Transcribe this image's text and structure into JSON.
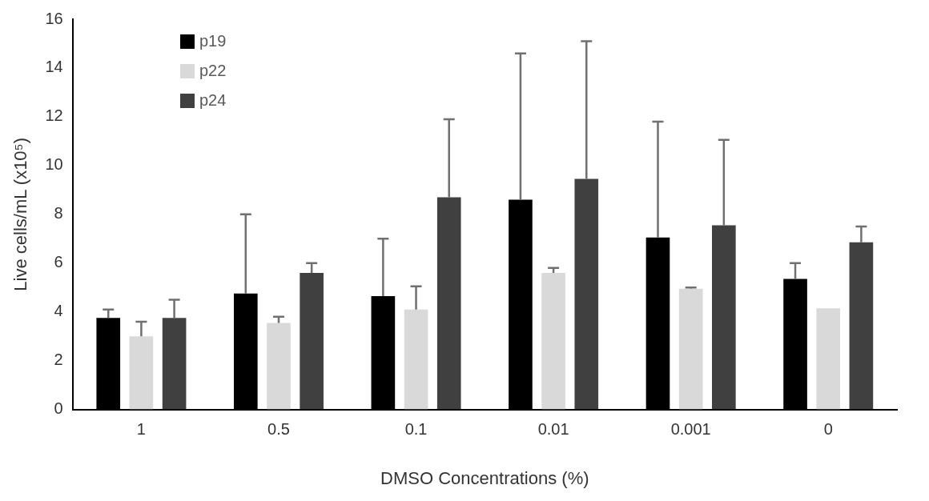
{
  "chart_data": {
    "type": "bar",
    "xlabel": "DMSO Concentrations (%)",
    "ylabel": "Live cells/mL (x10⁵)",
    "categories": [
      "1",
      "0.5",
      "0.1",
      "0.01",
      "0.001",
      "0"
    ],
    "series": [
      {
        "name": "p19",
        "color": "#000000",
        "values": [
          3.75,
          4.75,
          4.65,
          8.6,
          7.05,
          5.35
        ],
        "errors": [
          [
            3.75,
            4.1
          ],
          [
            4.75,
            8.0
          ],
          [
            4.65,
            7.0
          ],
          [
            8.6,
            14.6
          ],
          [
            7.05,
            11.8
          ],
          [
            5.35,
            6.0
          ]
        ]
      },
      {
        "name": "p22",
        "color": "#d9d9d9",
        "values": [
          3.0,
          3.55,
          4.1,
          5.6,
          4.95,
          4.15
        ],
        "errors": [
          [
            3.0,
            3.6
          ],
          [
            3.55,
            3.8
          ],
          [
            4.1,
            5.05
          ],
          [
            5.6,
            5.8
          ],
          [
            4.95,
            5.0
          ],
          null
        ]
      },
      {
        "name": "p24",
        "color": "#404040",
        "values": [
          3.75,
          5.6,
          8.7,
          9.45,
          7.55,
          6.85
        ],
        "errors": [
          [
            3.75,
            4.5
          ],
          [
            5.6,
            6.0
          ],
          [
            8.7,
            11.9
          ],
          [
            9.45,
            15.1
          ],
          [
            7.55,
            11.05
          ],
          [
            6.85,
            7.5
          ]
        ]
      }
    ],
    "ylim": [
      0,
      16
    ],
    "yticks": [
      0,
      2,
      4,
      6,
      8,
      10,
      12,
      14,
      16
    ],
    "grid": false,
    "legend": "top left"
  }
}
